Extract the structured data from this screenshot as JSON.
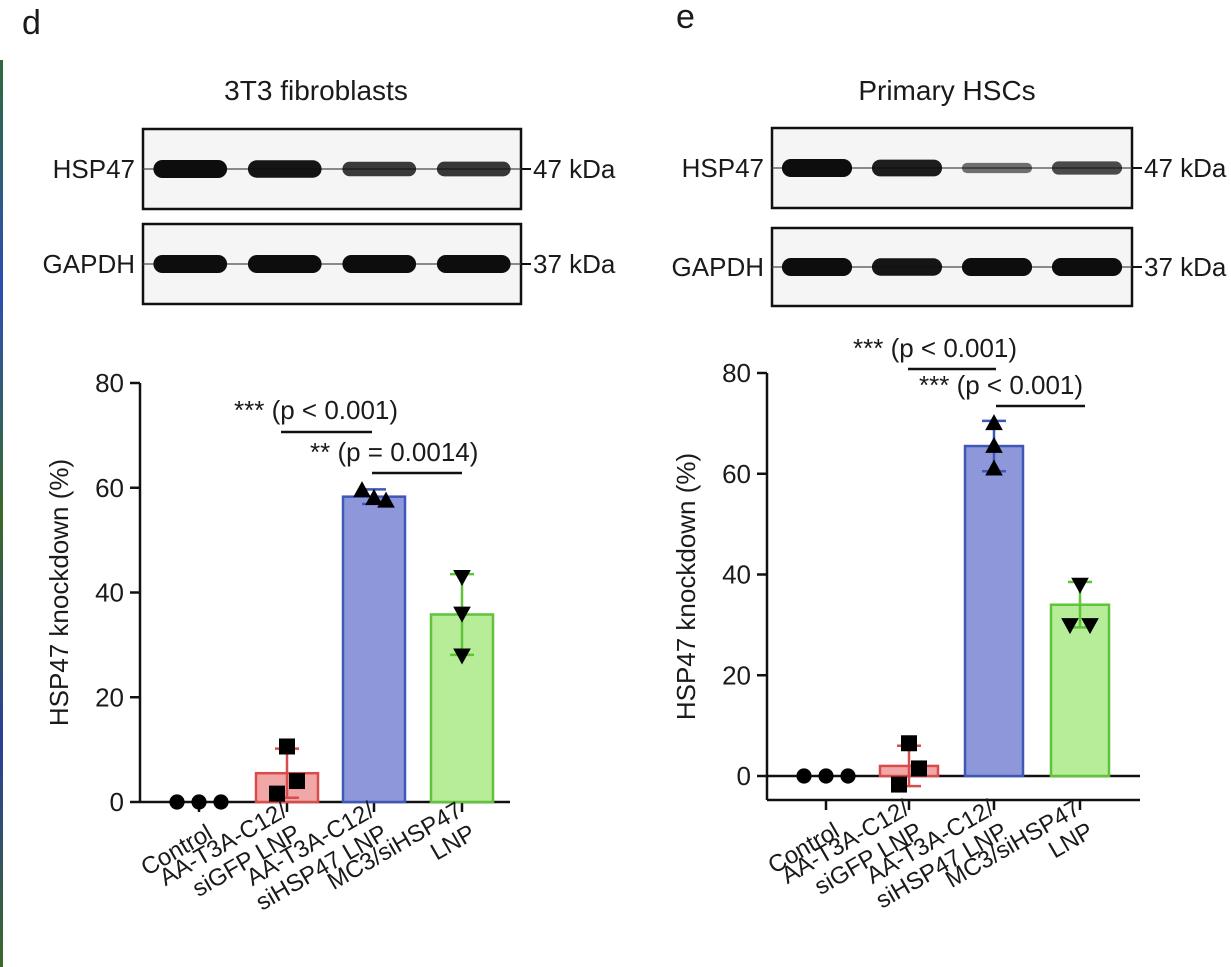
{
  "colors": {
    "control": "#000000",
    "sigfp_fill": "#f2a7a7",
    "sigfp_stroke": "#d94c4c",
    "sihsp_fill": "#8f97db",
    "sihsp_stroke": "#3f58b8",
    "mc3_fill": "#b7ec98",
    "mc3_stroke": "#5fc43a",
    "membrane": "#f5f5f5",
    "band": "#0d0d0d"
  },
  "panel_d": {
    "letter": "d",
    "blot_title": "3T3 fibroblasts",
    "blots": [
      {
        "protein": "HSP47",
        "mw": "47 kDa",
        "intensity": [
          1.0,
          0.95,
          0.7,
          0.72
        ]
      },
      {
        "protein": "GAPDH",
        "mw": "37 kDa",
        "intensity": [
          1.0,
          1.0,
          1.0,
          1.0
        ]
      }
    ],
    "annotations": [
      {
        "stars": "***",
        "text": "(p < 0.001)"
      },
      {
        "stars": "**",
        "text": "(p = 0.0014)"
      }
    ]
  },
  "panel_e": {
    "letter": "e",
    "blot_title": "Primary HSCs",
    "blots": [
      {
        "protein": "HSP47",
        "mw": "47 kDa",
        "intensity": [
          1.0,
          0.9,
          0.35,
          0.6
        ]
      },
      {
        "protein": "GAPDH",
        "mw": "37 kDa",
        "intensity": [
          1.0,
          0.95,
          1.0,
          1.0
        ]
      }
    ],
    "annotations": [
      {
        "stars": "***",
        "text": "(p < 0.001)"
      },
      {
        "stars": "***",
        "text": "(p < 0.001)"
      }
    ]
  },
  "chart_data": [
    {
      "type": "bar",
      "panel": "d",
      "title": "3T3 fibroblasts",
      "ylabel": "HSP47 knockdown (%)",
      "ylim": [
        0,
        80
      ],
      "yticks": [
        0,
        20,
        40,
        60,
        80
      ],
      "categories": [
        "Control",
        "AA-T3A-C12/ siGFP LNP",
        "AA-T3A-C12/ siHSP47 LNP",
        "MC3/siHSP47 LNP"
      ],
      "tick_lines": [
        [
          "Control"
        ],
        [
          "AA-T3A-C12/",
          "siGFP LNP"
        ],
        [
          "AA-T3A-C12/",
          "siHSP47 LNP"
        ],
        [
          "MC3/siHSP47",
          "LNP"
        ]
      ],
      "values": [
        0,
        5.5,
        58.3,
        35.8
      ],
      "errors": [
        0,
        4.7,
        1.4,
        7.7
      ],
      "points": [
        [
          0,
          0,
          0
        ],
        [
          1.6,
          4.0,
          10.6
        ],
        [
          59.5,
          57.5,
          58.0
        ],
        [
          43.0,
          36.0,
          28.0
        ]
      ],
      "markers": [
        "circle",
        "square",
        "triangle-up",
        "triangle-down"
      ],
      "comparisons": [
        {
          "from": 1,
          "to": 2,
          "label": "*** (p < 0.001)"
        },
        {
          "from": 2,
          "to": 3,
          "label": "** (p = 0.0014)"
        }
      ],
      "grid": false
    },
    {
      "type": "bar",
      "panel": "e",
      "title": "Primary HSCs",
      "ylabel": "HSP47 knockdown (%)",
      "ylim": [
        -5,
        80
      ],
      "yticks": [
        0,
        20,
        40,
        60,
        80
      ],
      "categories": [
        "Control",
        "AA-T3A-C12/ siGFP LNP",
        "AA-T3A-C12/ siHSP47 LNP",
        "MC3/siHSP47 LNP"
      ],
      "tick_lines": [
        [
          "Control"
        ],
        [
          "AA-T3A-C12/",
          "siGFP LNP"
        ],
        [
          "AA-T3A-C12/",
          "siHSP47 LNP"
        ],
        [
          "MC3/siHSP47",
          "LNP"
        ]
      ],
      "values": [
        0,
        2.0,
        65.5,
        34.0
      ],
      "errors": [
        0,
        4.0,
        5.0,
        4.5
      ],
      "points": [
        [
          0,
          0,
          0
        ],
        [
          6.5,
          1.5,
          -1.7
        ],
        [
          70.0,
          65.5,
          61.0
        ],
        [
          38.0,
          30.0,
          30.0
        ]
      ],
      "markers": [
        "circle",
        "square",
        "triangle-up",
        "triangle-down"
      ],
      "comparisons": [
        {
          "from": 1,
          "to": 2,
          "label": "*** (p < 0.001)"
        },
        {
          "from": 2,
          "to": 3,
          "label": "*** (p < 0.001)"
        }
      ],
      "grid": false
    }
  ]
}
